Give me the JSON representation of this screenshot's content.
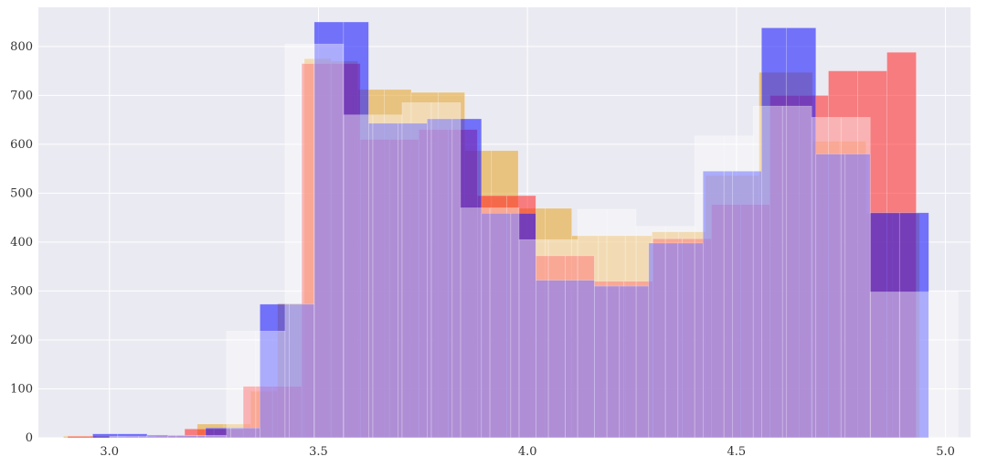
{
  "chart_data": {
    "type": "bar",
    "title": "",
    "xlabel": "",
    "ylabel": "",
    "xlim": [
      2.83,
      5.06
    ],
    "ylim": [
      0,
      880
    ],
    "grid": true,
    "legend": "none",
    "background": "#eaeaf2",
    "x_ticks": [
      3.0,
      3.5,
      4.0,
      4.5,
      5.0
    ],
    "x_tick_labels": [
      "3.0",
      "3.5",
      "4.0",
      "4.5",
      "5.0"
    ],
    "y_ticks": [
      0,
      100,
      200,
      300,
      400,
      500,
      600,
      700,
      800
    ],
    "y_tick_labels": [
      "0",
      "100",
      "200",
      "300",
      "400",
      "500",
      "600",
      "700",
      "800"
    ],
    "series": [
      {
        "color": "#e6a020",
        "opacity": 0.55,
        "edges": [
          2.89,
          2.954,
          3.018,
          3.082,
          3.146,
          3.21,
          3.274,
          3.338,
          3.402,
          3.466,
          3.53,
          3.594,
          3.658,
          3.722,
          3.786,
          3.85,
          3.914,
          3.978,
          4.042,
          4.106,
          4.17,
          4.234,
          4.298,
          4.362,
          4.426,
          4.49,
          4.554,
          4.618,
          4.682,
          4.746,
          4.81,
          4.874,
          4.938
        ],
        "values": [
          3,
          4,
          2,
          3,
          5,
          28,
          28,
          95,
          275,
          775,
          770,
          712,
          712,
          706,
          706,
          587,
          587,
          469,
          469,
          413,
          413,
          413,
          421,
          421,
          536,
          536,
          747,
          747,
          606,
          606,
          458,
          458
        ]
      },
      {
        "color": "#ff2020",
        "opacity": 0.55,
        "edges": [
          2.9,
          2.97,
          3.04,
          3.11,
          3.18,
          3.25,
          3.32,
          3.39,
          3.46,
          3.53,
          3.6,
          3.67,
          3.74,
          3.81,
          3.88,
          3.95,
          4.02,
          4.09,
          4.16,
          4.23,
          4.3,
          4.37,
          4.44,
          4.51,
          4.58,
          4.65,
          4.72,
          4.79,
          4.86,
          4.93
        ],
        "values": [
          3,
          2,
          3,
          4,
          18,
          18,
          105,
          105,
          765,
          765,
          610,
          610,
          630,
          630,
          495,
          495,
          372,
          372,
          320,
          320,
          407,
          407,
          477,
          477,
          700,
          700,
          750,
          750,
          788,
          788
        ]
      },
      {
        "color": "#2020ff",
        "opacity": 0.6,
        "edges": [
          2.96,
          3.02,
          3.09,
          3.16,
          3.23,
          3.29,
          3.36,
          3.43,
          3.49,
          3.56,
          3.62,
          3.69,
          3.76,
          3.82,
          3.89,
          3.96,
          4.02,
          4.09,
          4.16,
          4.22,
          4.29,
          4.36,
          4.42,
          4.49,
          4.56,
          4.62,
          4.69,
          4.76,
          4.82,
          4.89,
          4.96
        ],
        "values": [
          8,
          8,
          5,
          5,
          20,
          20,
          273,
          273,
          850,
          850,
          643,
          643,
          652,
          652,
          459,
          459,
          322,
          322,
          310,
          310,
          398,
          398,
          545,
          545,
          838,
          838,
          580,
          580,
          460,
          460
        ]
      },
      {
        "color": "#ffffff",
        "opacity": 0.42,
        "edges": [
          3.0,
          3.07,
          3.14,
          3.21,
          3.28,
          3.35,
          3.42,
          3.49,
          3.56,
          3.63,
          3.7,
          3.77,
          3.84,
          3.91,
          3.98,
          4.05,
          4.12,
          4.19,
          4.26,
          4.33,
          4.4,
          4.47,
          4.54,
          4.61,
          4.68,
          4.75,
          4.82,
          4.89,
          4.96,
          5.03
        ],
        "values": [
          3,
          3,
          5,
          5,
          218,
          218,
          805,
          805,
          660,
          660,
          685,
          685,
          470,
          470,
          405,
          405,
          467,
          467,
          432,
          432,
          617,
          617,
          678,
          678,
          655,
          655,
          298,
          298,
          300
        ]
      }
    ]
  }
}
